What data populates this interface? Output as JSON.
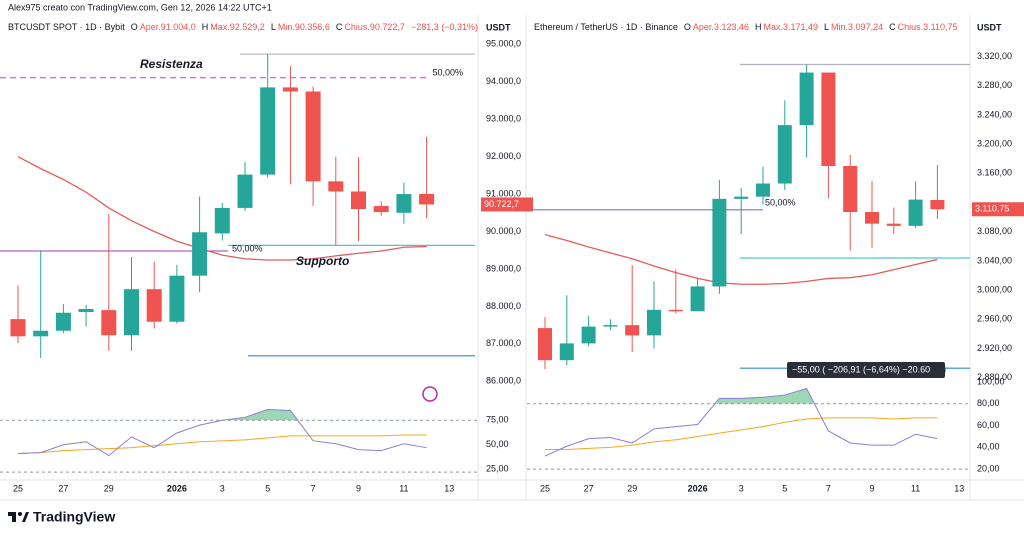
{
  "header": "Alex975 creato con TradingView.com, Gen 12, 2026 14:22 UTC+1",
  "footer": "TradingView",
  "chart_data": [
    {
      "type": "candlestick",
      "title": "BTCUSDT SPOT · 1D · Bybit",
      "unit": "USDT",
      "legend": [
        {
          "k": "O",
          "v": "Aper.91.004,0"
        },
        {
          "k": "H",
          "v": "Max.92.529,2"
        },
        {
          "k": "L",
          "v": "Min.90.356,6"
        },
        {
          "k": "C",
          "v": "Chius.90.722,7"
        },
        {
          "k": "",
          "v": "−281,3 (−0,31%)"
        }
      ],
      "categories": [
        "25",
        null,
        "27",
        null,
        "29",
        null,
        null,
        "2026",
        null,
        "3",
        null,
        "5",
        null,
        "7",
        null,
        "9",
        null,
        "11",
        null,
        "13"
      ],
      "open": [
        87660,
        87200,
        87350,
        87850,
        87900,
        87230,
        88460,
        87590,
        88820,
        89950,
        90630,
        91520,
        93850,
        93740,
        91340,
        91070,
        90680,
        90500,
        91004.0,
        null
      ],
      "high": [
        88560,
        89500,
        88060,
        88040,
        90470,
        89320,
        89190,
        89110,
        90940,
        90760,
        91860,
        94740,
        94420,
        93870,
        92000,
        91990,
        90810,
        91310,
        92529.2,
        null
      ],
      "low": [
        87020,
        86620,
        87280,
        87460,
        86810,
        86810,
        87410,
        87540,
        88380,
        89760,
        90550,
        91440,
        91260,
        90680,
        89630,
        89740,
        90420,
        90210,
        90356.6,
        null
      ],
      "close": [
        87200,
        87350,
        87830,
        87930,
        87230,
        88460,
        87590,
        88820,
        89980,
        90630,
        91520,
        93850,
        93740,
        91340,
        91070,
        90600,
        90520,
        91000,
        90722.7,
        null
      ],
      "up_color": "#26a69a",
      "down_color": "#ef5350",
      "ma": {
        "color": "#e35d5d",
        "values": [
          92000,
          91680,
          91390,
          91050,
          90630,
          90290,
          90000,
          89740,
          89550,
          89370,
          89270,
          89240,
          89240,
          89270,
          89350,
          89420,
          89480,
          89580,
          89600,
          null
        ]
      },
      "last_label": "90.722,7",
      "ylim": [
        85900,
        95650
      ],
      "yticks": [
        {
          "value": 86000,
          "label": "86.000,0"
        },
        {
          "value": 87000,
          "label": "87.000,0"
        },
        {
          "value": 88000,
          "label": "88.000,0"
        },
        {
          "value": 89000,
          "label": "89.000,0"
        },
        {
          "value": 90000,
          "label": "90.000,0"
        },
        {
          "value": 91000,
          "label": "91.000,0"
        },
        {
          "value": 92000,
          "label": "92.000,0"
        },
        {
          "value": 93000,
          "label": "93.000,0"
        },
        {
          "value": 94000,
          "label": "94.000,0"
        },
        {
          "value": 95000,
          "label": "95.000,0"
        }
      ],
      "levels": [
        {
          "value": 94740,
          "color": "#b2b5be"
        },
        {
          "value": 94110,
          "color": "#c77dd7",
          "dashed": true,
          "name": "Resistenza",
          "label": "50,00%"
        },
        {
          "value": 89480,
          "color": "#b45cc9",
          "label": "50,00%"
        },
        {
          "value": 89630,
          "color": "#4dc3d6",
          "name": "Supporto"
        },
        {
          "value": 86680,
          "color": "#2e8bd6"
        }
      ],
      "rsi": {
        "values": [
          41,
          42,
          50,
          53,
          39,
          58,
          47,
          62,
          70,
          75,
          78,
          86,
          85,
          54,
          51,
          45,
          44,
          51,
          47,
          null
        ],
        "signal": [
          41,
          42,
          44,
          45,
          46,
          47,
          49,
          51,
          53,
          54,
          55,
          57,
          59,
          59,
          59,
          59,
          59,
          60,
          60,
          null
        ],
        "rsi_color": "#8c7fd6",
        "signal_color": "#f5a623",
        "ylim": [
          14,
          111
        ],
        "yticks": [
          {
            "value": 25,
            "label": "25,00"
          },
          {
            "value": 50,
            "label": "50,00"
          },
          {
            "value": 75,
            "label": "75,00"
          }
        ],
        "levels": [
          75,
          22
        ]
      }
    },
    {
      "type": "candlestick",
      "title": "Ethereum / TetherUS · 1D · Binance",
      "unit": "USDT",
      "legend": [
        {
          "k": "O",
          "v": "Aper.3.123,46"
        },
        {
          "k": "H",
          "v": "Max.3.171,49"
        },
        {
          "k": "L",
          "v": "Min.3.097,24"
        },
        {
          "k": "C",
          "v": "Chius.3.110,75"
        }
      ],
      "categories": [
        "25",
        null,
        "27",
        null,
        "29",
        null,
        null,
        "2026",
        null,
        "3",
        null,
        "5",
        null,
        "7",
        null,
        "9",
        null,
        "11",
        null,
        "13"
      ],
      "open": [
        2948,
        2904,
        2927,
        2950,
        2952,
        2938,
        2973,
        2971,
        3005,
        3125,
        3128,
        3146,
        3226,
        3298,
        3170,
        3107,
        3091,
        3088,
        3123.46,
        null
      ],
      "high": [
        2963,
        2993,
        2965,
        2960,
        3034,
        3012,
        3028,
        3017,
        3151,
        3140,
        3169,
        3260,
        3309,
        3298,
        3185,
        3149,
        3113,
        3149,
        3171.49,
        null
      ],
      "low": [
        2892,
        2897,
        2923,
        2945,
        2915,
        2920,
        2968,
        2973,
        2995,
        3077,
        3117,
        3137,
        3182,
        3126,
        3054,
        3058,
        3077,
        3085,
        3097.24,
        null
      ],
      "close": [
        2904,
        2927,
        2950,
        2952,
        2938,
        2973,
        2971,
        3005,
        3125,
        3128,
        3146,
        3226,
        3298,
        3170,
        3107,
        3091,
        3088,
        3124,
        3110.75,
        null
      ],
      "up_color": "#26a69a",
      "down_color": "#ef5350",
      "ma": {
        "color": "#e35d5d",
        "values": [
          3076,
          3068,
          3059,
          3051,
          3043,
          3033,
          3024,
          3016,
          3010,
          3008,
          3008,
          3009,
          3012,
          3016,
          3017,
          3021,
          3028,
          3035,
          3042,
          null
        ]
      },
      "last_label": "3.110,75",
      "ylim": [
        2870,
        3370
      ],
      "yticks": [
        {
          "value": 2880,
          "label": "2.880,00"
        },
        {
          "value": 2920,
          "label": "2.920,00"
        },
        {
          "value": 2960,
          "label": "2.960,00"
        },
        {
          "value": 3000,
          "label": "3.000,00"
        },
        {
          "value": 3040,
          "label": "3.040,00"
        },
        {
          "value": 3080,
          "label": "3.080,00"
        },
        {
          "value": 3160,
          "label": "3.160,00"
        },
        {
          "value": 3200,
          "label": "3.200,00"
        },
        {
          "value": 3240,
          "label": "3.240,00"
        },
        {
          "value": 3280,
          "label": "3.280,00"
        },
        {
          "value": 3320,
          "label": "3.320,00"
        }
      ],
      "levels": [
        {
          "value": 3309,
          "color": "#b2b5be"
        },
        {
          "value": 3110,
          "color": "#8e6bbf",
          "label": "50,00%"
        },
        {
          "value": 3044,
          "color": "#4dc3d6"
        },
        {
          "value": 2893,
          "color": "#2e8bd6"
        }
      ],
      "measure": "−55,00 (   −206,91 (−6,64%)  −20.60",
      "rsi": {
        "values": [
          32,
          41,
          48,
          49,
          44,
          57,
          59,
          61,
          85,
          85,
          86,
          88,
          94,
          55,
          44,
          42,
          42,
          52,
          48,
          null
        ],
        "signal": [
          38,
          38,
          39,
          40,
          42,
          45,
          47,
          50,
          53,
          56,
          59,
          63,
          66,
          67,
          67,
          67,
          66,
          67,
          67,
          null
        ],
        "rsi_color": "#8c7fd6",
        "signal_color": "#f5a623",
        "ylim": [
          10,
          100
        ],
        "yticks": [
          {
            "value": 20,
            "label": "20,00"
          },
          {
            "value": 40,
            "label": "40,00"
          },
          {
            "value": 60,
            "label": "60,00"
          },
          {
            "value": 80,
            "label": "80,00"
          },
          {
            "value": 100,
            "label": "100,00"
          }
        ],
        "levels": [
          80,
          20
        ]
      }
    }
  ]
}
